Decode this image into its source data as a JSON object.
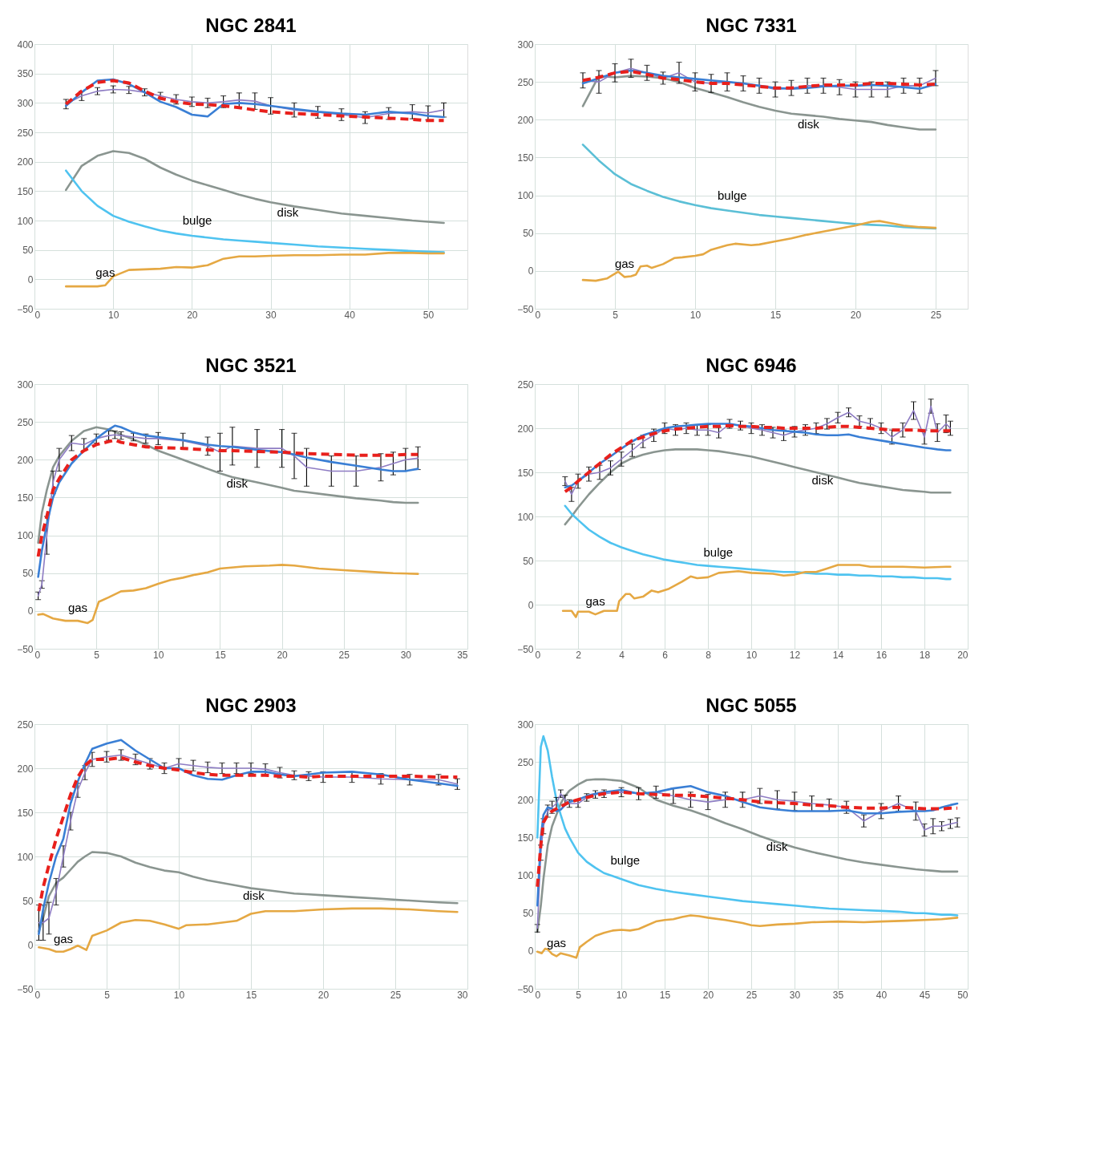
{
  "chart_data": [
    {
      "type": "line",
      "title": "NGC 2841",
      "xlim": [
        0,
        55
      ],
      "xticks": [
        0,
        10,
        20,
        30,
        40,
        50
      ],
      "ylim": [
        -50,
        400
      ],
      "yticks": [
        -50,
        0,
        50,
        100,
        150,
        200,
        250,
        300,
        350,
        400
      ],
      "grid": true,
      "x": [
        4,
        6,
        8,
        10,
        12,
        14,
        16,
        18,
        20,
        22,
        24,
        26,
        28,
        30,
        33,
        36,
        39,
        42,
        45,
        48,
        50,
        52
      ],
      "series": [
        {
          "name": "disk",
          "color": "#8a9590",
          "values": [
            152,
            193,
            210,
            218,
            215,
            205,
            190,
            178,
            168,
            160,
            152,
            144,
            137,
            131,
            124,
            118,
            112,
            108,
            104,
            100,
            98,
            96
          ]
        },
        {
          "name": "bulge",
          "color": "#4fc3f0",
          "values": [
            185,
            150,
            125,
            108,
            98,
            90,
            83,
            78,
            74,
            71,
            68,
            66,
            64,
            62,
            59,
            56,
            54,
            52,
            50,
            48,
            47,
            46
          ]
        },
        {
          "name": "gas",
          "color": "#e5a843",
          "x": [
            4,
            6,
            8,
            9,
            10,
            12,
            14,
            16,
            18,
            20,
            22,
            24,
            26,
            28,
            30,
            33,
            36,
            39,
            42,
            45,
            48,
            50,
            52
          ],
          "values": [
            -12,
            -12,
            -12,
            -10,
            5,
            16,
            17,
            18,
            21,
            20,
            24,
            35,
            39,
            39,
            40,
            41,
            41,
            42,
            42,
            45,
            45,
            44,
            44
          ]
        },
        {
          "color": "#8e7cc3",
          "values": [
            298,
            312,
            320,
            323,
            322,
            318,
            312,
            306,
            302,
            300,
            302,
            305,
            303,
            295,
            288,
            284,
            280,
            275,
            282,
            285,
            283,
            288
          ],
          "errors": [
            8,
            8,
            6,
            6,
            6,
            6,
            6,
            8,
            8,
            8,
            10,
            12,
            14,
            14,
            12,
            10,
            10,
            10,
            10,
            12,
            12,
            12
          ]
        },
        {
          "color": "#3a7fd5",
          "values": [
            295,
            318,
            338,
            340,
            332,
            318,
            302,
            293,
            280,
            277,
            298,
            300,
            298,
            295,
            290,
            285,
            282,
            280,
            285,
            282,
            278,
            276
          ]
        },
        {
          "color": "#e8201c",
          "line_style": "dashed",
          "values": [
            298,
            320,
            335,
            338,
            334,
            320,
            308,
            302,
            298,
            297,
            295,
            292,
            288,
            285,
            282,
            280,
            278,
            276,
            274,
            272,
            270,
            270
          ]
        }
      ]
    },
    {
      "type": "line",
      "title": "NGC 7331",
      "xlim": [
        0,
        27
      ],
      "xticks": [
        0,
        5,
        10,
        15,
        20,
        25
      ],
      "ylim": [
        -50,
        300
      ],
      "yticks": [
        -50,
        0,
        50,
        100,
        150,
        200,
        250,
        300
      ],
      "grid": true,
      "x": [
        3,
        4,
        5,
        6,
        7,
        8,
        9,
        10,
        11,
        12,
        13,
        14,
        15,
        16,
        17,
        18,
        19,
        20,
        21,
        22,
        23,
        24,
        25
      ],
      "series": [
        {
          "name": "disk",
          "color": "#8a9590",
          "values": [
            218,
            258,
            256,
            258,
            257,
            255,
            250,
            242,
            236,
            230,
            223,
            217,
            212,
            208,
            206,
            204,
            201,
            199,
            197,
            193,
            190,
            187,
            187
          ]
        },
        {
          "name": "bulge",
          "color": "#5bbfd6",
          "values": [
            167,
            146,
            128,
            115,
            106,
            98,
            92,
            87,
            83,
            80,
            77,
            74,
            72,
            70,
            68,
            66,
            64,
            62,
            61,
            60,
            58,
            57,
            56
          ]
        },
        {
          "name": "gas",
          "color": "#e5a843",
          "x": [
            3,
            3.8,
            4.5,
            5.2,
            5.6,
            6,
            6.3,
            6.6,
            7,
            7.3,
            8,
            8.7,
            9.2,
            10,
            10.5,
            11,
            12,
            12.5,
            13.5,
            14,
            15,
            16,
            17,
            18,
            19,
            20,
            21,
            21.5,
            22,
            23,
            24,
            25
          ],
          "values": [
            -12,
            -13,
            -10,
            -1,
            -8,
            -7,
            -5,
            6,
            7,
            4,
            9,
            17,
            18,
            20,
            22,
            28,
            34,
            36,
            34,
            35,
            39,
            43,
            48,
            52,
            56,
            60,
            65,
            66,
            64,
            60,
            58,
            57
          ]
        },
        {
          "color": "#8e7cc3",
          "values": [
            252,
            250,
            262,
            268,
            262,
            255,
            262,
            250,
            248,
            250,
            248,
            245,
            240,
            242,
            245,
            245,
            243,
            240,
            240,
            240,
            245,
            245,
            255
          ],
          "errors": [
            10,
            15,
            12,
            12,
            10,
            8,
            14,
            12,
            12,
            12,
            10,
            10,
            10,
            10,
            10,
            10,
            10,
            10,
            10,
            10,
            10,
            10,
            10
          ]
        },
        {
          "color": "#3a7fd5",
          "values": [
            248,
            255,
            262,
            265,
            262,
            258,
            256,
            254,
            252,
            250,
            248,
            245,
            242,
            241,
            242,
            244,
            245,
            245,
            246,
            245,
            243,
            241,
            247
          ]
        },
        {
          "color": "#e8201c",
          "line_style": "dashed",
          "values": [
            252,
            256,
            262,
            264,
            260,
            255,
            253,
            250,
            248,
            248,
            246,
            244,
            242,
            242,
            244,
            246,
            246,
            246,
            248,
            248,
            247,
            246,
            247
          ]
        }
      ]
    },
    {
      "type": "line",
      "title": "NGC 3521",
      "xlim": [
        0,
        35
      ],
      "xticks": [
        0,
        5,
        10,
        15,
        20,
        25,
        30,
        35
      ],
      "ylim": [
        -50,
        300
      ],
      "yticks": [
        -50,
        0,
        50,
        100,
        150,
        200,
        250,
        300
      ],
      "grid": true,
      "x": [
        0.3,
        0.6,
        1,
        1.5,
        2,
        3,
        4,
        5,
        6,
        6.5,
        7,
        8,
        9,
        10,
        12,
        14,
        15,
        16,
        18,
        20,
        21,
        22,
        24,
        26,
        28,
        29,
        30,
        31
      ],
      "series": [
        {
          "name": "disk",
          "color": "#8a9590",
          "values": [
            90,
            130,
            160,
            190,
            205,
            225,
            238,
            243,
            240,
            237,
            233,
            227,
            220,
            212,
            200,
            188,
            182,
            177,
            170,
            163,
            159,
            157,
            153,
            149,
            146,
            144,
            143,
            143
          ]
        },
        {
          "name": "gas",
          "color": "#e5a843",
          "x": [
            0.3,
            0.7,
            1.5,
            2.5,
            3.5,
            4.3,
            4.7,
            5.2,
            6,
            7,
            8,
            9,
            10,
            11,
            12,
            13,
            14,
            15,
            17,
            19,
            20,
            21,
            23,
            25,
            27,
            29,
            31
          ],
          "values": [
            -5,
            -4,
            -10,
            -13,
            -13,
            -16,
            -12,
            12,
            18,
            26,
            27,
            30,
            36,
            41,
            44,
            48,
            51,
            56,
            59,
            60,
            61,
            60,
            56,
            54,
            52,
            50,
            49
          ]
        },
        {
          "color": "#8e7cc3",
          "values": [
            20,
            35,
            100,
            170,
            200,
            222,
            220,
            228,
            232,
            233,
            232,
            230,
            228,
            228,
            225,
            218,
            210,
            218,
            215,
            215,
            205,
            190,
            185,
            185,
            190,
            195,
            200,
            202
          ],
          "errors": [
            5,
            5,
            25,
            15,
            15,
            10,
            8,
            6,
            6,
            5,
            5,
            5,
            6,
            8,
            10,
            12,
            25,
            25,
            25,
            25,
            30,
            25,
            20,
            20,
            18,
            15,
            15,
            15
          ]
        },
        {
          "color": "#3a7fd5",
          "values": [
            45,
            80,
            115,
            150,
            170,
            195,
            212,
            228,
            240,
            245,
            243,
            236,
            232,
            230,
            226,
            220,
            218,
            217,
            213,
            210,
            207,
            203,
            197,
            192,
            187,
            185,
            185,
            188
          ]
        },
        {
          "color": "#e8201c",
          "line_style": "dashed",
          "values": [
            72,
            100,
            125,
            160,
            175,
            200,
            212,
            220,
            224,
            226,
            223,
            220,
            217,
            216,
            215,
            213,
            212,
            212,
            211,
            210,
            209,
            208,
            207,
            206,
            206,
            206,
            207,
            207
          ]
        }
      ]
    },
    {
      "type": "line",
      "title": "NGC 6946",
      "xlim": [
        0,
        20
      ],
      "xticks": [
        0,
        2,
        4,
        6,
        8,
        10,
        12,
        14,
        16,
        18,
        20
      ],
      "ylim": [
        -50,
        250
      ],
      "yticks": [
        -50,
        0,
        50,
        100,
        150,
        200,
        250
      ],
      "grid": true,
      "x": [
        1.4,
        1.7,
        2,
        2.5,
        3,
        3.5,
        4,
        4.5,
        5,
        5.5,
        6,
        6.5,
        7,
        7.5,
        8,
        8.5,
        9,
        9.5,
        10,
        10.5,
        11,
        11.5,
        12,
        12.5,
        13,
        13.5,
        14,
        14.5,
        15,
        15.5,
        16,
        16.5,
        17,
        17.5,
        18,
        18.3,
        18.6,
        19,
        19.2
      ],
      "series": [
        {
          "name": "disk",
          "color": "#8a9590",
          "values": [
            91,
            100,
            110,
            125,
            138,
            150,
            160,
            166,
            170,
            173,
            175,
            176,
            176,
            176,
            175,
            174,
            172,
            170,
            168,
            165,
            162,
            159,
            156,
            153,
            150,
            147,
            144,
            141,
            138,
            136,
            134,
            132,
            130,
            129,
            128,
            127,
            127,
            127,
            127
          ]
        },
        {
          "name": "bulge",
          "color": "#4fc3f0",
          "values": [
            112,
            103,
            96,
            85,
            77,
            70,
            65,
            61,
            57,
            54,
            51,
            49,
            47,
            45,
            44,
            43,
            42,
            41,
            40,
            39,
            38,
            37,
            37,
            36,
            35,
            35,
            34,
            34,
            33,
            33,
            32,
            32,
            31,
            31,
            30,
            30,
            30,
            29,
            29
          ]
        },
        {
          "name": "gas",
          "color": "#e5a843",
          "x": [
            1.3,
            1.7,
            1.9,
            2,
            2.5,
            2.8,
            3.2,
            3.5,
            3.8,
            3.9,
            4.2,
            4.4,
            4.6,
            5,
            5.4,
            5.7,
            6.2,
            6.8,
            7.2,
            7.5,
            8,
            8.5,
            9,
            9.4,
            10,
            11,
            11.5,
            12,
            12.5,
            13,
            13.5,
            14,
            15,
            15.5,
            16,
            17,
            18,
            19,
            19.2
          ],
          "values": [
            -7,
            -7,
            -14,
            -8,
            -8,
            -11,
            -7,
            -7,
            -7,
            4,
            12,
            12,
            7,
            9,
            16,
            14,
            18,
            26,
            32,
            30,
            31,
            36,
            37,
            38,
            36,
            35,
            33,
            34,
            37,
            37,
            41,
            45,
            45,
            43,
            43,
            43,
            42,
            43,
            43
          ]
        },
        {
          "color": "#8e7cc3",
          "values": [
            140,
            125,
            140,
            148,
            150,
            155,
            165,
            175,
            185,
            192,
            200,
            198,
            200,
            198,
            198,
            195,
            205,
            203,
            200,
            198,
            195,
            192,
            196,
            198,
            200,
            205,
            212,
            218,
            208,
            205,
            200,
            190,
            198,
            220,
            190,
            225,
            195,
            205,
            200
          ],
          "errors": [
            5,
            8,
            8,
            8,
            8,
            8,
            8,
            7,
            7,
            7,
            6,
            6,
            6,
            6,
            6,
            6,
            5,
            5,
            6,
            6,
            6,
            6,
            6,
            6,
            6,
            6,
            6,
            5,
            6,
            6,
            6,
            8,
            8,
            10,
            8,
            8,
            10,
            10,
            8
          ]
        },
        {
          "color": "#3a7fd5",
          "values": [
            133,
            135,
            140,
            150,
            160,
            168,
            177,
            185,
            192,
            196,
            200,
            202,
            203,
            204,
            205,
            205,
            205,
            203,
            202,
            200,
            198,
            197,
            196,
            195,
            193,
            192,
            192,
            193,
            190,
            188,
            186,
            184,
            182,
            180,
            178,
            177,
            176,
            175,
            175
          ]
        },
        {
          "color": "#e8201c",
          "line_style": "dashed",
          "values": [
            128,
            133,
            140,
            150,
            160,
            170,
            178,
            186,
            190,
            194,
            197,
            199,
            200,
            201,
            202,
            202,
            203,
            202,
            202,
            201,
            201,
            200,
            200,
            200,
            200,
            201,
            202,
            202,
            201,
            200,
            199,
            198,
            198,
            198,
            197,
            197,
            197,
            197,
            197
          ]
        }
      ]
    },
    {
      "type": "line",
      "title": "NGC 2903",
      "xlim": [
        0,
        30
      ],
      "xticks": [
        0,
        5,
        10,
        15,
        20,
        25,
        30
      ],
      "ylim": [
        -50,
        250
      ],
      "yticks": [
        -50,
        0,
        50,
        100,
        150,
        200,
        250
      ],
      "grid": true,
      "x": [
        0.3,
        0.6,
        1,
        1.5,
        2,
        2.5,
        3,
        3.5,
        4,
        5,
        6,
        7,
        8,
        9,
        10,
        11,
        12,
        13,
        14,
        15,
        16,
        17,
        18,
        19,
        20,
        22,
        24,
        26,
        28,
        29.3
      ],
      "series": [
        {
          "name": "disk",
          "color": "#8a9590",
          "values": [
            15,
            30,
            55,
            70,
            76,
            85,
            94,
            100,
            105,
            104,
            100,
            93,
            88,
            84,
            82,
            77,
            73,
            70,
            67,
            64,
            62,
            60,
            58,
            57,
            56,
            54,
            52,
            50,
            48,
            47
          ]
        },
        {
          "name": "gas",
          "color": "#e5a843",
          "x": [
            0.3,
            1,
            1.5,
            2,
            2.5,
            3,
            3.6,
            4,
            5,
            6,
            7,
            8,
            9,
            10,
            10.5,
            12,
            14,
            15,
            16,
            18,
            20,
            22,
            24,
            26,
            28,
            29.3
          ],
          "values": [
            -3,
            -5,
            -8,
            -8,
            -5,
            -1,
            -6,
            10,
            16,
            25,
            28,
            27,
            23,
            18,
            22,
            23,
            27,
            35,
            38,
            38,
            40,
            41,
            41,
            40,
            38,
            37
          ]
        },
        {
          "color": "#8e7cc3",
          "values": [
            25,
            25,
            30,
            60,
            100,
            140,
            175,
            195,
            210,
            213,
            215,
            210,
            205,
            200,
            205,
            203,
            201,
            200,
            200,
            200,
            199,
            195,
            192,
            191,
            190,
            190,
            188,
            187,
            187,
            182
          ],
          "errors": [
            20,
            20,
            18,
            15,
            12,
            10,
            8,
            8,
            8,
            6,
            6,
            6,
            6,
            6,
            6,
            6,
            6,
            6,
            6,
            6,
            6,
            6,
            5,
            5,
            6,
            6,
            6,
            6,
            6,
            6
          ]
        },
        {
          "color": "#3a7fd5",
          "values": [
            12,
            40,
            70,
            100,
            120,
            160,
            185,
            205,
            222,
            228,
            232,
            220,
            210,
            200,
            200,
            192,
            188,
            187,
            192,
            196,
            196,
            193,
            191,
            193,
            195,
            196,
            193,
            187,
            183,
            180
          ]
        },
        {
          "color": "#e8201c",
          "line_style": "dashed",
          "values": [
            38,
            65,
            90,
            120,
            145,
            170,
            190,
            203,
            210,
            210,
            212,
            207,
            203,
            200,
            198,
            195,
            193,
            192,
            192,
            192,
            192,
            191,
            191,
            190,
            191,
            191,
            191,
            191,
            190,
            190
          ]
        }
      ]
    },
    {
      "type": "line",
      "title": "NGC 5055",
      "xlim": [
        0,
        50
      ],
      "xticks": [
        0,
        5,
        10,
        15,
        20,
        25,
        30,
        35,
        40,
        45,
        50
      ],
      "ylim": [
        -50,
        300
      ],
      "yticks": [
        -50,
        0,
        50,
        100,
        150,
        200,
        250,
        300
      ],
      "grid": true,
      "x": [
        0.3,
        0.7,
        1,
        1.5,
        2,
        2.5,
        3,
        3.5,
        4,
        5,
        6,
        7,
        8,
        10,
        12,
        14,
        16,
        18,
        20,
        22,
        24,
        26,
        28,
        30,
        32,
        34,
        36,
        38,
        40,
        42,
        44,
        45,
        46,
        47,
        48,
        48.8
      ],
      "series": [
        {
          "name": "disk",
          "color": "#8a9590",
          "values": [
            25,
            60,
            95,
            140,
            165,
            180,
            195,
            205,
            212,
            220,
            226,
            227,
            227,
            225,
            216,
            200,
            192,
            186,
            178,
            169,
            161,
            152,
            144,
            137,
            131,
            126,
            121,
            117,
            114,
            111,
            108,
            107,
            106,
            105,
            105,
            105
          ]
        },
        {
          "name": "bulge",
          "color": "#4fc3f0",
          "values": [
            150,
            270,
            284,
            265,
            230,
            200,
            180,
            162,
            150,
            130,
            118,
            110,
            103,
            95,
            87,
            82,
            78,
            75,
            72,
            69,
            66,
            64,
            62,
            60,
            58,
            56,
            55,
            54,
            53,
            52,
            50,
            50,
            49,
            48,
            48,
            47
          ]
        },
        {
          "name": "gas",
          "color": "#e5a843",
          "x": [
            0.3,
            0.8,
            1.2,
            1.5,
            2,
            2.5,
            3,
            4,
            4.8,
            5.2,
            6,
            7,
            8,
            9,
            10,
            11,
            12,
            13,
            14,
            15,
            16,
            17,
            18,
            19,
            20,
            22,
            24,
            25,
            26,
            28,
            30,
            32,
            35,
            38,
            40,
            43,
            45,
            47,
            48.8
          ],
          "values": [
            -1,
            -3,
            3,
            2,
            -4,
            -7,
            -3,
            -6,
            -9,
            5,
            12,
            20,
            24,
            27,
            28,
            27,
            29,
            34,
            39,
            41,
            42,
            45,
            47,
            46,
            44,
            41,
            37,
            34,
            33,
            35,
            36,
            38,
            39,
            38,
            39,
            40,
            41,
            42,
            44
          ]
        },
        {
          "color": "#8e7cc3",
          "values": [
            30,
            130,
            165,
            185,
            190,
            195,
            208,
            200,
            195,
            195,
            203,
            207,
            208,
            210,
            208,
            210,
            205,
            200,
            197,
            200,
            200,
            205,
            200,
            198,
            195,
            193,
            190,
            172,
            185,
            195,
            185,
            160,
            165,
            165,
            168,
            170
          ],
          "errors": [
            5,
            10,
            10,
            8,
            8,
            8,
            5,
            6,
            5,
            5,
            5,
            5,
            5,
            6,
            8,
            8,
            10,
            10,
            10,
            10,
            10,
            10,
            12,
            12,
            10,
            8,
            8,
            8,
            10,
            10,
            12,
            8,
            10,
            6,
            6,
            6
          ]
        },
        {
          "color": "#3a7fd5",
          "values": [
            60,
            150,
            180,
            190,
            188,
            185,
            187,
            193,
            197,
            200,
            205,
            208,
            210,
            213,
            208,
            210,
            215,
            218,
            210,
            205,
            197,
            190,
            187,
            185,
            185,
            185,
            186,
            182,
            182,
            184,
            185,
            185,
            186,
            190,
            193,
            195
          ]
        },
        {
          "color": "#e8201c",
          "line_style": "dashed",
          "values": [
            85,
            140,
            170,
            180,
            185,
            188,
            191,
            194,
            197,
            200,
            203,
            206,
            208,
            210,
            208,
            207,
            206,
            206,
            204,
            202,
            200,
            197,
            196,
            195,
            193,
            192,
            190,
            189,
            189,
            190,
            189,
            188,
            188,
            188,
            189,
            189
          ]
        }
      ]
    }
  ]
}
